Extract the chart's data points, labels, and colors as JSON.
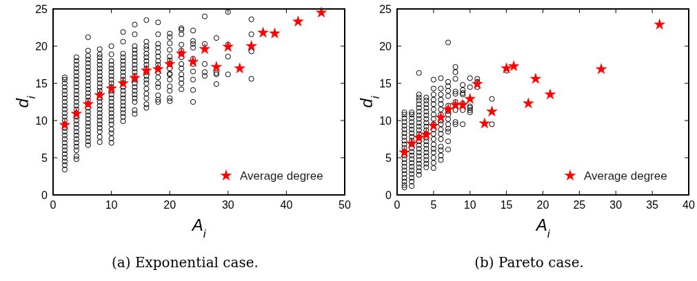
{
  "chart_data": [
    {
      "type": "scatter",
      "title": "(a) Exponential case.",
      "xlabel": "A$_{i}$",
      "ylabel": "d$_{i}$",
      "xlim": [
        0,
        50
      ],
      "ylim": [
        0,
        25
      ],
      "xticks": [
        0,
        10,
        20,
        30,
        40,
        50
      ],
      "yticks": [
        0,
        5,
        10,
        15,
        20,
        25
      ],
      "legend": "bottom right",
      "series": [
        {
          "color": "#000000",
          "marker": "circle",
          "x": [
            2,
            2,
            2,
            2,
            2,
            2,
            2,
            2,
            2,
            2,
            2,
            2,
            2,
            2,
            2,
            2,
            2,
            2,
            2,
            2,
            2,
            2,
            2,
            2,
            2,
            2,
            4,
            4,
            4,
            4,
            4,
            4,
            4,
            4,
            4,
            4,
            4,
            4,
            4,
            4,
            4,
            4,
            4,
            4,
            4,
            4,
            4,
            4,
            4,
            4,
            4,
            4,
            4,
            4,
            6,
            6,
            6,
            6,
            6,
            6,
            6,
            6,
            6,
            6,
            6,
            6,
            6,
            6,
            6,
            6,
            6,
            6,
            6,
            6,
            6,
            6,
            6,
            6,
            6,
            6,
            6,
            8,
            8,
            8,
            8,
            8,
            8,
            8,
            8,
            8,
            8,
            8,
            8,
            8,
            8,
            8,
            8,
            8,
            8,
            8,
            8,
            8,
            8,
            8,
            8,
            8,
            10,
            10,
            10,
            10,
            10,
            10,
            10,
            10,
            10,
            10,
            10,
            10,
            10,
            10,
            10,
            10,
            10,
            10,
            10,
            10,
            10,
            10,
            10,
            10,
            12,
            12,
            12,
            12,
            12,
            12,
            12,
            12,
            12,
            12,
            12,
            12,
            12,
            12,
            12,
            12,
            12,
            12,
            12,
            12,
            12,
            14,
            14,
            14,
            14,
            14,
            14,
            14,
            14,
            14,
            14,
            14,
            14,
            14,
            14,
            14,
            14,
            14,
            14,
            14,
            14,
            16,
            16,
            16,
            16,
            16,
            16,
            16,
            16,
            16,
            16,
            16,
            16,
            16,
            16,
            16,
            16,
            16,
            16,
            18,
            18,
            18,
            18,
            18,
            18,
            18,
            18,
            18,
            18,
            18,
            18,
            18,
            18,
            18,
            18,
            20,
            20,
            20,
            20,
            20,
            20,
            20,
            20,
            20,
            20,
            20,
            20,
            20,
            20,
            20,
            22,
            22,
            22,
            22,
            22,
            22,
            22,
            22,
            22,
            22,
            22,
            22,
            22,
            24,
            24,
            24,
            24,
            24,
            24,
            24,
            24,
            24,
            24,
            26,
            26,
            26,
            26,
            26,
            28,
            28,
            28,
            28,
            30,
            30,
            30,
            30,
            34,
            34,
            34,
            34
          ],
          "values": [
            3.4,
            4.0,
            4.5,
            5.0,
            5.5,
            6.0,
            6.5,
            7.0,
            7.5,
            8.0,
            8.5,
            9.0,
            9.5,
            10.0,
            10.5,
            11.0,
            11.5,
            12.0,
            12.5,
            13.0,
            13.5,
            14.0,
            14.5,
            15.0,
            15.5,
            15.8,
            4.8,
            5.2,
            6.0,
            6.5,
            7.0,
            7.5,
            8.0,
            8.5,
            9.0,
            9.5,
            10.0,
            10.5,
            11.0,
            11.5,
            12.0,
            12.5,
            13.0,
            13.5,
            14.0,
            14.5,
            15.0,
            15.5,
            16.0,
            16.5,
            17.0,
            17.5,
            18.0,
            18.5,
            6.7,
            7.2,
            7.7,
            8.2,
            8.7,
            9.2,
            9.7,
            10.2,
            10.7,
            11.2,
            11.7,
            12.2,
            12.7,
            13.2,
            13.7,
            14.2,
            14.7,
            15.2,
            15.7,
            16.2,
            16.7,
            17.2,
            17.7,
            18.2,
            18.7,
            19.4,
            21.2,
            7.1,
            7.8,
            8.5,
            9.0,
            9.5,
            10.0,
            10.5,
            11.0,
            11.5,
            12.0,
            12.5,
            13.0,
            13.5,
            14.0,
            14.5,
            15.0,
            15.5,
            16.0,
            16.5,
            17.0,
            17.5,
            18.0,
            18.5,
            18.9,
            19.6,
            7.0,
            7.6,
            8.3,
            8.8,
            9.5,
            10.0,
            10.5,
            11.0,
            11.5,
            12.0,
            12.5,
            13.0,
            13.5,
            14.0,
            14.5,
            15.0,
            15.5,
            16.0,
            16.5,
            17.0,
            17.5,
            18.0,
            18.9,
            20.0,
            9.9,
            10.5,
            11.0,
            11.5,
            12.0,
            12.5,
            13.0,
            13.5,
            14.0,
            14.5,
            15.0,
            15.5,
            16.0,
            16.5,
            17.0,
            17.5,
            18.0,
            18.5,
            19.0,
            20.6,
            21.9,
            10.9,
            11.4,
            12.5,
            13.0,
            13.5,
            14.0,
            14.5,
            15.0,
            15.5,
            16.0,
            16.5,
            17.0,
            17.5,
            18.0,
            18.5,
            19.0,
            19.5,
            20.0,
            21.6,
            22.9,
            11.7,
            12.2,
            13.0,
            13.6,
            14.3,
            15.0,
            15.5,
            16.0,
            16.5,
            17.0,
            17.5,
            18.0,
            18.5,
            19.0,
            19.6,
            20.0,
            20.6,
            23.5,
            12.5,
            12.8,
            13.4,
            14.5,
            15.0,
            15.8,
            16.5,
            17.0,
            17.5,
            18.0,
            18.6,
            19.2,
            19.8,
            20.3,
            21.6,
            23.2,
            12.6,
            13.0,
            14.0,
            14.6,
            15.5,
            16.2,
            16.3,
            17.0,
            17.6,
            18.1,
            18.6,
            19.5,
            20.4,
            21.2,
            21.7,
            14.2,
            15.0,
            15.6,
            16.2,
            17.0,
            17.6,
            18.5,
            19.0,
            19.4,
            20.2,
            21.6,
            22.2,
            22.4,
            12.5,
            14.1,
            15.5,
            16.6,
            17.6,
            18.3,
            19.8,
            20.3,
            20.7,
            22.1,
            16.0,
            16.5,
            17.6,
            20.3,
            24.0,
            14.9,
            16.2,
            16.4,
            21.1,
            16.2,
            18.6,
            20.2,
            24.6,
            15.6,
            19.3,
            21.6,
            23.6
          ]
        },
        {
          "name": "Average degree",
          "color": "#ff0000",
          "marker": "star",
          "x": [
            2,
            4,
            6,
            8,
            10,
            12,
            14,
            16,
            18,
            20,
            22,
            24,
            26,
            28,
            30,
            32,
            34,
            36,
            38,
            42,
            46
          ],
          "values": [
            9.4,
            10.9,
            12.2,
            13.4,
            14.3,
            15.0,
            15.7,
            16.7,
            16.9,
            17.6,
            19.0,
            17.9,
            19.6,
            17.2,
            19.9,
            17.0,
            20.0,
            21.8,
            21.7,
            23.3,
            24.5
          ]
        }
      ]
    },
    {
      "type": "scatter",
      "title": "(b) Pareto case.",
      "xlabel": "A$_{i}$",
      "ylabel": "d$_{i}$",
      "xlim": [
        0,
        40
      ],
      "ylim": [
        0,
        25
      ],
      "xticks": [
        0,
        5,
        10,
        15,
        20,
        25,
        30,
        35,
        40
      ],
      "yticks": [
        0,
        5,
        10,
        15,
        20,
        25
      ],
      "legend": "bottom right",
      "series": [
        {
          "color": "#000000",
          "marker": "circle",
          "x": [
            1,
            1,
            1,
            1,
            1,
            1,
            1,
            1,
            1,
            1,
            1,
            1,
            1,
            1,
            1,
            1,
            1,
            1,
            1,
            1,
            1,
            1,
            2,
            2,
            2,
            2,
            2,
            2,
            2,
            2,
            2,
            2,
            2,
            2,
            2,
            2,
            2,
            2,
            2,
            2,
            2,
            2,
            2,
            3,
            3,
            3,
            3,
            3,
            3,
            3,
            3,
            3,
            3,
            3,
            3,
            3,
            3,
            3,
            3,
            3,
            3,
            3,
            3,
            3,
            3,
            3,
            3,
            4,
            4,
            4,
            4,
            4,
            4,
            4,
            4,
            4,
            4,
            4,
            4,
            4,
            4,
            4,
            4,
            4,
            4,
            4,
            4,
            5,
            5,
            5,
            5,
            5,
            5,
            5,
            5,
            5,
            5,
            5,
            5,
            5,
            5,
            5,
            5,
            5,
            5,
            6,
            6,
            6,
            6,
            6,
            6,
            6,
            6,
            6,
            6,
            6,
            6,
            6,
            6,
            6,
            6,
            7,
            7,
            7,
            7,
            7,
            7,
            7,
            7,
            7,
            7,
            7,
            7,
            7,
            7,
            8,
            8,
            8,
            8,
            8,
            8,
            8,
            8,
            8,
            9,
            9,
            9,
            9,
            9,
            9,
            9,
            10,
            10,
            10,
            10,
            10,
            10,
            11,
            11,
            11,
            13,
            13,
            15
          ],
          "values": [
            1.0,
            1.3,
            1.8,
            2.3,
            2.8,
            3.3,
            3.8,
            4.3,
            4.8,
            5.3,
            5.8,
            6.3,
            6.8,
            7.3,
            7.8,
            8.3,
            8.8,
            9.3,
            9.8,
            10.3,
            10.8,
            11.1,
            1.2,
            1.8,
            2.3,
            2.8,
            3.3,
            3.8,
            4.3,
            4.8,
            5.3,
            5.8,
            6.3,
            6.8,
            7.3,
            7.8,
            8.3,
            8.8,
            9.3,
            9.8,
            10.3,
            10.8,
            11.1,
            2.7,
            3.2,
            3.7,
            4.2,
            4.7,
            5.2,
            5.7,
            6.2,
            6.7,
            7.2,
            7.7,
            8.2,
            8.7,
            9.2,
            9.7,
            10.2,
            10.7,
            11.2,
            11.7,
            12.2,
            12.7,
            13.1,
            13.5,
            16.4,
            3.7,
            4.2,
            4.7,
            5.2,
            5.7,
            6.2,
            6.7,
            7.2,
            7.7,
            8.2,
            8.7,
            9.2,
            9.7,
            10.2,
            10.7,
            11.2,
            11.7,
            12.2,
            12.7,
            13.1,
            3.6,
            4.3,
            5.0,
            5.7,
            6.2,
            6.8,
            7.5,
            8.2,
            8.8,
            9.5,
            10.2,
            10.8,
            11.5,
            12.2,
            12.8,
            13.5,
            14.3,
            15.5,
            4.7,
            5.3,
            6.0,
            6.5,
            7.5,
            8.2,
            8.8,
            9.5,
            10.0,
            10.8,
            11.5,
            12.2,
            12.8,
            13.5,
            14.3,
            15.7,
            6.1,
            7.2,
            8.5,
            8.9,
            9.5,
            10.2,
            10.8,
            11.3,
            12.0,
            13.3,
            14.0,
            14.6,
            15.2,
            20.5,
            9.5,
            9.8,
            11.4,
            12.5,
            13.6,
            13.9,
            15.6,
            16.5,
            17.2,
            9.5,
            11.4,
            12.3,
            13.5,
            13.7,
            14.1,
            14.8,
            11.1,
            11.4,
            11.7,
            11.9,
            14.5,
            15.7,
            14.5,
            15.2,
            15.6,
            9.5,
            12.9,
            16.7
          ]
        },
        {
          "name": "Average degree",
          "color": "#ff0000",
          "marker": "star",
          "x": [
            1,
            2,
            3,
            4,
            5,
            6,
            7,
            8,
            9,
            10,
            11,
            12,
            13,
            15,
            16,
            18,
            19,
            21,
            28,
            36
          ],
          "values": [
            5.7,
            6.9,
            7.7,
            8.1,
            9.3,
            10.4,
            11.5,
            12.1,
            12.1,
            12.9,
            14.9,
            9.6,
            11.2,
            17.0,
            17.3,
            12.3,
            15.6,
            13.5,
            16.9,
            22.9
          ]
        }
      ]
    }
  ]
}
